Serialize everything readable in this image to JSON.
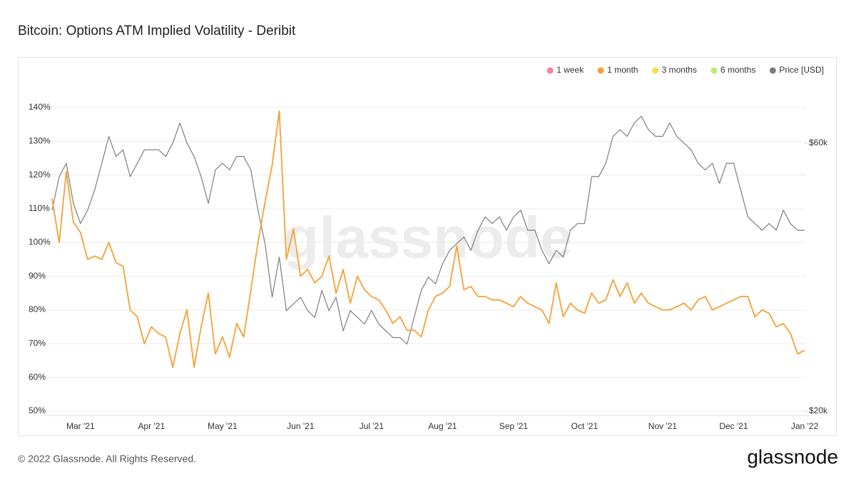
{
  "chart_data": {
    "type": "line",
    "title": "Bitcoin: Options ATM Implied Volatility - Deribit",
    "watermark": "glassnode",
    "footer": "© 2022 Glassnode. All Rights Reserved.",
    "logo": "glassnode",
    "categories": [
      null,
      null,
      null,
      null,
      "Mar '21",
      null,
      null,
      null,
      null,
      null,
      null,
      null,
      null,
      null,
      "Apr '21",
      null,
      null,
      null,
      null,
      null,
      null,
      null,
      null,
      null,
      "May '21",
      null,
      null,
      null,
      null,
      null,
      null,
      null,
      null,
      null,
      null,
      "Jun '21",
      null,
      null,
      null,
      null,
      null,
      null,
      null,
      null,
      null,
      "Jul '21",
      null,
      null,
      null,
      null,
      null,
      null,
      null,
      null,
      null,
      "Aug '21",
      null,
      null,
      null,
      null,
      null,
      null,
      null,
      null,
      null,
      "Sep '21",
      null,
      null,
      null,
      null,
      null,
      null,
      null,
      null,
      null,
      "Oct '21",
      null,
      null,
      null,
      null,
      null,
      null,
      null,
      null,
      null,
      null,
      "Nov '21",
      null,
      null,
      null,
      null,
      null,
      null,
      null,
      null,
      null,
      "Dec '21",
      null,
      null,
      null,
      null,
      null,
      null,
      null,
      null,
      null,
      "Jan '22"
    ],
    "series": [
      {
        "name": "1 month",
        "color": "#f7a035",
        "values": [
          113,
          100,
          121,
          106,
          103,
          95,
          96,
          95,
          100,
          94,
          93,
          80,
          78,
          70,
          75,
          73,
          72,
          63,
          73,
          80,
          63,
          75,
          85,
          67,
          72,
          66,
          76,
          72,
          86,
          100,
          112,
          123,
          139,
          95,
          104,
          90,
          92,
          88,
          90,
          96,
          85,
          92,
          82,
          90,
          86,
          84,
          83,
          80,
          76,
          78,
          74,
          74,
          72,
          80,
          84,
          85,
          87,
          99,
          86,
          87,
          84,
          84,
          83,
          83,
          82,
          81,
          84,
          82,
          81,
          80,
          76,
          88,
          78,
          82,
          80,
          79,
          85,
          82,
          83,
          89,
          84,
          88,
          82,
          85,
          82,
          81,
          80,
          80,
          81,
          82,
          80,
          83,
          84,
          80,
          81,
          82,
          83,
          84,
          84,
          78,
          80,
          79,
          75,
          76,
          73,
          67,
          68
        ]
      },
      {
        "name": "Price [USD]",
        "color": "#7d7d7d",
        "axis": "y2",
        "values": [
          50000,
          55000,
          57000,
          51000,
          48000,
          50000,
          53000,
          57000,
          61000,
          58000,
          59000,
          55000,
          57000,
          59000,
          59000,
          59000,
          58000,
          60000,
          63000,
          60000,
          58000,
          55000,
          51000,
          56000,
          57000,
          56000,
          58000,
          58000,
          56000,
          50000,
          45000,
          37000,
          43000,
          35000,
          36000,
          37000,
          35000,
          34000,
          38000,
          35000,
          37000,
          32000,
          35000,
          34000,
          33000,
          35000,
          33000,
          32000,
          31000,
          31000,
          30000,
          34000,
          38000,
          40000,
          39000,
          42000,
          44000,
          45000,
          46000,
          44000,
          47000,
          49000,
          48000,
          49000,
          47000,
          49000,
          50000,
          47000,
          47000,
          44000,
          42000,
          44000,
          43000,
          47000,
          48000,
          48000,
          55000,
          55000,
          57000,
          61000,
          62000,
          61000,
          63000,
          64000,
          62000,
          61000,
          61000,
          63000,
          61000,
          60000,
          59000,
          57000,
          56000,
          57000,
          54000,
          57000,
          57000,
          53000,
          49000,
          48000,
          47000,
          48000,
          47000,
          50000,
          48000,
          47000,
          47000
        ]
      }
    ],
    "legend": [
      {
        "name": "1 week",
        "color": "#f0647a",
        "active": false
      },
      {
        "name": "1 month",
        "color": "#f7a035",
        "active": true
      },
      {
        "name": "3 months",
        "color": "#f5d32a",
        "active": false
      },
      {
        "name": "6 months",
        "color": "#a6e84a",
        "active": false
      },
      {
        "name": "Price [USD]",
        "color": "#7d7d7d",
        "active": true
      }
    ],
    "ylim": [
      50,
      140
    ],
    "yticks": [
      {
        "value": 50,
        "label": "50%"
      },
      {
        "value": 60,
        "label": "60%"
      },
      {
        "value": 70,
        "label": "70%"
      },
      {
        "value": 80,
        "label": "80%"
      },
      {
        "value": 90,
        "label": "90%"
      },
      {
        "value": 100,
        "label": "100%"
      },
      {
        "value": 110,
        "label": "110%"
      },
      {
        "value": 120,
        "label": "120%"
      },
      {
        "value": 130,
        "label": "130%"
      },
      {
        "value": 140,
        "label": "140%"
      }
    ],
    "y2lim": [
      20000,
      65300
    ],
    "y2ticks": [
      {
        "value": 20000,
        "label": "$20k"
      },
      {
        "value": 60000,
        "label": "$60k"
      }
    ],
    "grid": true
  }
}
